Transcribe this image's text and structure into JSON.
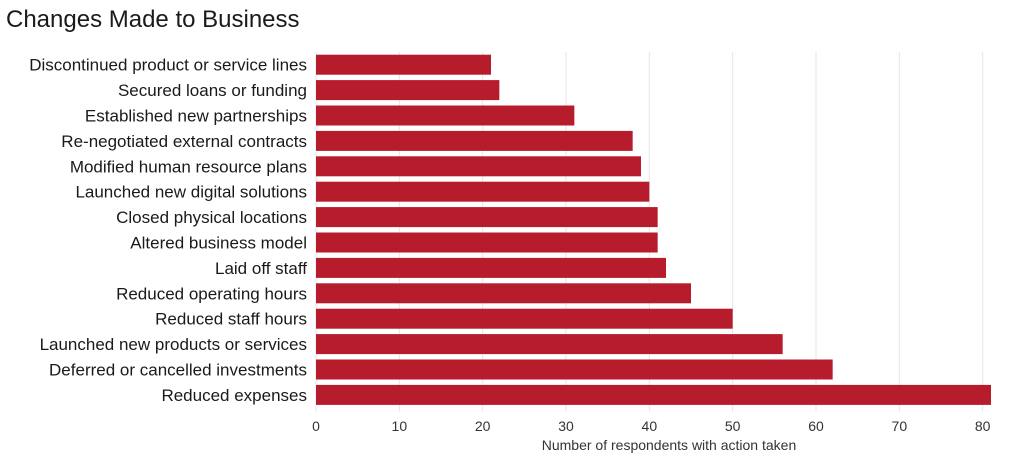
{
  "chart_data": {
    "type": "bar",
    "orientation": "horizontal",
    "title": "Changes Made to Business",
    "xlabel": "Number of respondents with action taken",
    "ylabel": "",
    "xlim": [
      0,
      82
    ],
    "xticks": [
      0,
      10,
      20,
      30,
      40,
      50,
      60,
      70,
      80
    ],
    "grid": true,
    "bar_color": "#b71c2c",
    "categories": [
      "Discontinued product or service lines",
      "Secured loans or funding",
      "Established new partnerships",
      "Re-negotiated external contracts",
      "Modified human resource plans",
      "Launched new digital solutions",
      "Closed physical locations",
      "Altered business model",
      "Laid off staff",
      "Reduced operating hours",
      "Reduced staff hours",
      "Launched new products or services",
      "Deferred or cancelled investments",
      "Reduced expenses"
    ],
    "values": [
      21,
      22,
      31,
      38,
      39,
      40,
      41,
      41,
      42,
      45,
      50,
      56,
      62,
      81
    ]
  }
}
